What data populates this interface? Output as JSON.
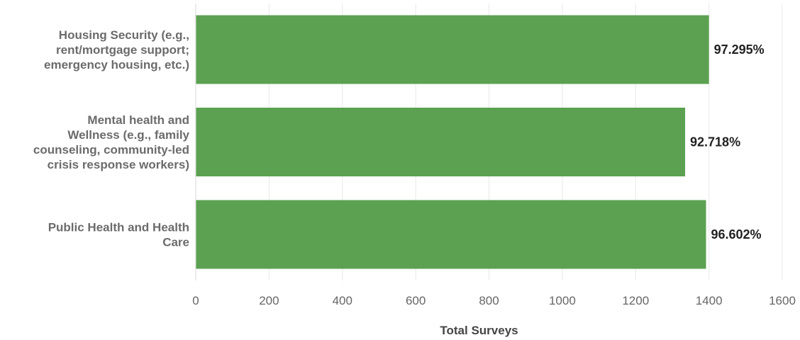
{
  "chart_data": {
    "type": "bar",
    "orientation": "horizontal",
    "categories": [
      [
        "Housing Security (e.g.,",
        "rent/mortgage support;",
        "emergency housing, etc.)"
      ],
      [
        "Mental health and",
        "Wellness (e.g., family",
        "counseling, community-led",
        "crisis response workers)"
      ],
      [
        "Public Health and Health",
        "Care"
      ]
    ],
    "values": [
      1400,
      1335,
      1392
    ],
    "data_labels": [
      "97.295%",
      "92.718%",
      "96.602%"
    ],
    "xlabel": "Total Surveys",
    "ylabel": "",
    "title": "",
    "xlim": [
      0,
      1600
    ],
    "x_ticks": [
      0,
      200,
      400,
      600,
      800,
      1000,
      1200,
      1400,
      1600
    ],
    "grid": true,
    "legend": "none",
    "bar_color": "#5ba151"
  }
}
